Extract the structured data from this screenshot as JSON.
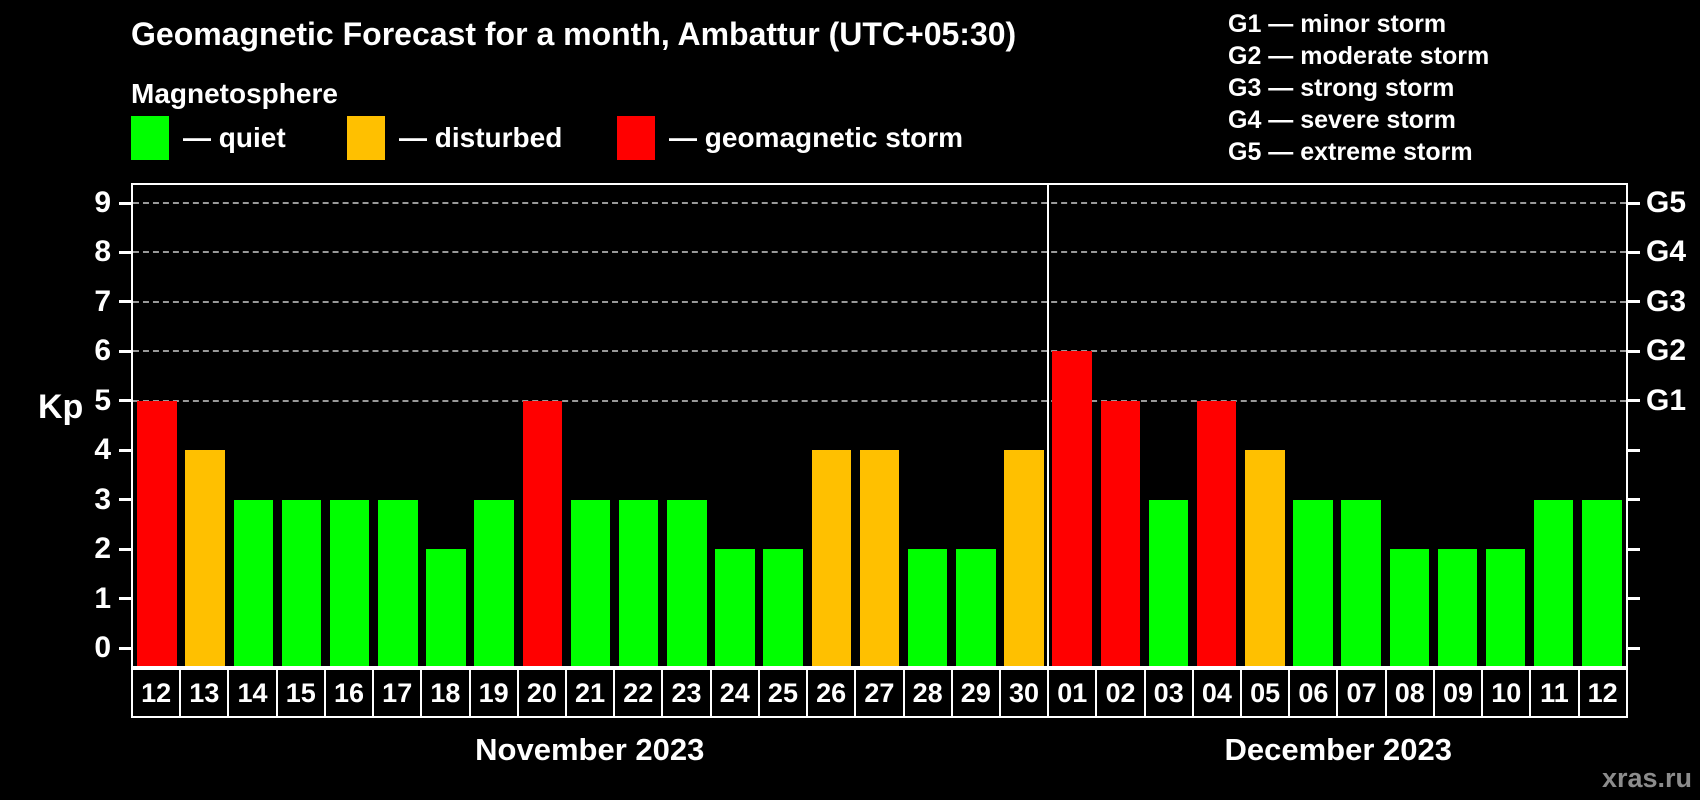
{
  "title": "Geomagnetic Forecast for a month, Ambattur (UTC+05:30)",
  "subtitle": "Magnetosphere",
  "colors": {
    "quiet": "#00ff00",
    "disturbed": "#ffc000",
    "storm": "#ff0000",
    "grid": "#999999",
    "axis": "#ffffff",
    "background": "#000000",
    "watermark": "#8c8c8c"
  },
  "legend": [
    {
      "key": "quiet",
      "label": "— quiet"
    },
    {
      "key": "disturbed",
      "label": "— disturbed"
    },
    {
      "key": "storm",
      "label": "— geomagnetic storm"
    }
  ],
  "g_legend": [
    "G1 — minor storm",
    "G2 — moderate storm",
    "G3 — strong storm",
    "G4 — severe storm",
    "G5 — extreme storm"
  ],
  "y_axis": {
    "label": "Kp",
    "ticks": [
      0,
      1,
      2,
      3,
      4,
      5,
      6,
      7,
      8,
      9
    ]
  },
  "right_axis": {
    "labels": [
      {
        "kp": 5,
        "text": "G1"
      },
      {
        "kp": 6,
        "text": "G2"
      },
      {
        "kp": 7,
        "text": "G3"
      },
      {
        "kp": 8,
        "text": "G4"
      },
      {
        "kp": 9,
        "text": "G5"
      }
    ]
  },
  "months": [
    {
      "label": "November 2023",
      "days": 19
    },
    {
      "label": "December 2023",
      "days": 12
    }
  ],
  "watermark": "xras.ru",
  "chart_data": {
    "type": "bar",
    "title": "Geomagnetic Forecast for a month, Ambattur (UTC+05:30)",
    "ylabel": "Kp",
    "ylim": [
      0,
      9
    ],
    "grid_on": true,
    "grid_levels": [
      5,
      6,
      7,
      8,
      9
    ],
    "categories": [
      "12",
      "13",
      "14",
      "15",
      "16",
      "17",
      "18",
      "19",
      "20",
      "21",
      "22",
      "23",
      "24",
      "25",
      "26",
      "27",
      "28",
      "29",
      "30",
      "01",
      "02",
      "03",
      "04",
      "05",
      "06",
      "07",
      "08",
      "09",
      "10",
      "11",
      "12"
    ],
    "values": [
      5,
      4,
      3,
      3,
      3,
      3,
      2,
      3,
      5,
      3,
      3,
      3,
      2,
      2,
      4,
      4,
      2,
      2,
      4,
      6,
      5,
      3,
      5,
      4,
      3,
      3,
      2,
      2,
      2,
      3,
      3
    ],
    "status": [
      "storm",
      "disturbed",
      "quiet",
      "quiet",
      "quiet",
      "quiet",
      "quiet",
      "quiet",
      "storm",
      "quiet",
      "quiet",
      "quiet",
      "quiet",
      "quiet",
      "disturbed",
      "disturbed",
      "quiet",
      "quiet",
      "disturbed",
      "storm",
      "storm",
      "quiet",
      "storm",
      "disturbed",
      "quiet",
      "quiet",
      "quiet",
      "quiet",
      "quiet",
      "quiet",
      "quiet"
    ]
  }
}
